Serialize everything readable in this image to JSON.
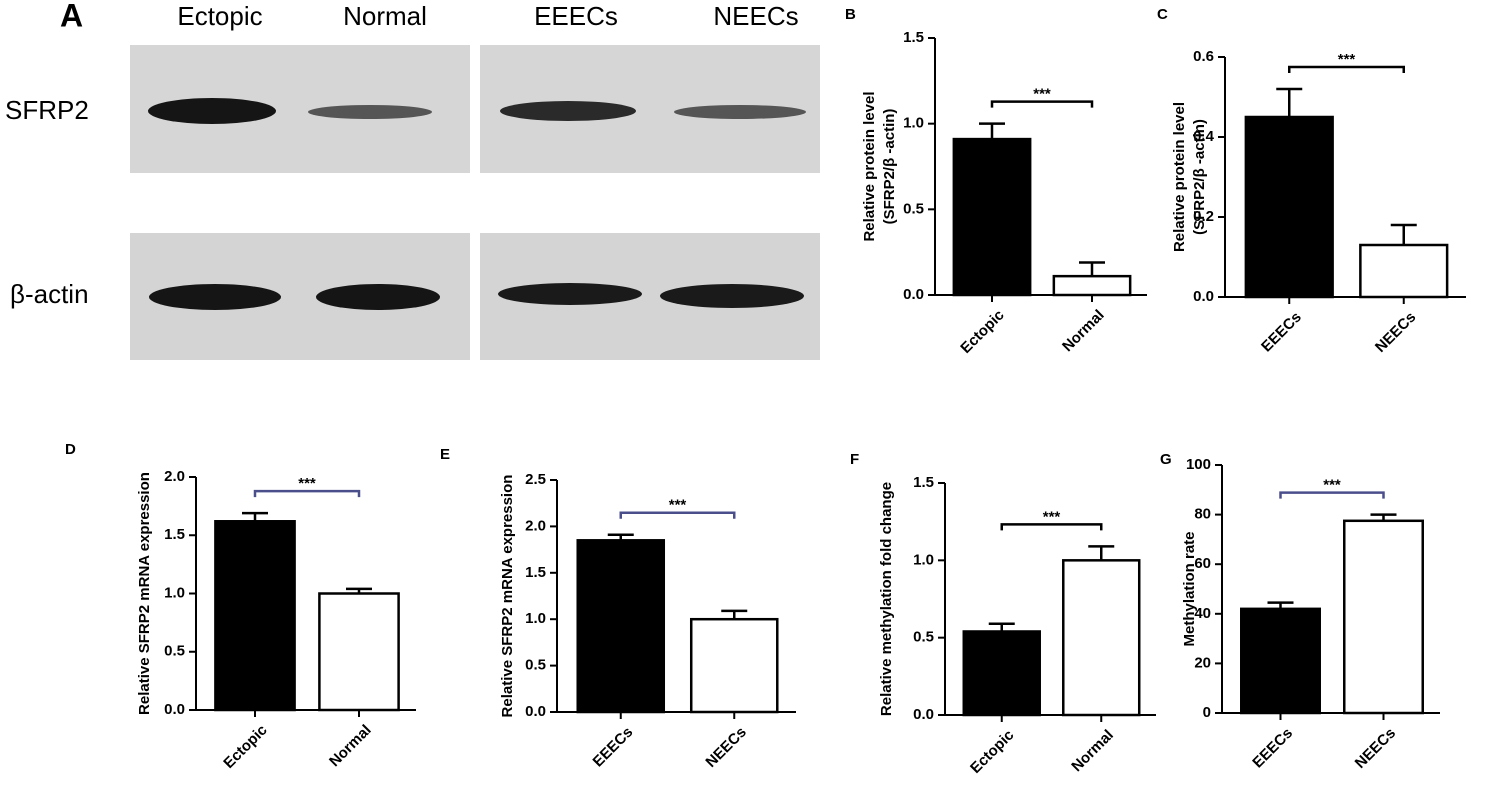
{
  "blot": {
    "panel": "A",
    "lanes": [
      "Ectopic",
      "Normal",
      "EEECs",
      "NEECs"
    ],
    "rows": [
      "SFRP2",
      "β-actin"
    ]
  },
  "chart_data": [
    {
      "type": "bar",
      "panel": "B",
      "ylabel": [
        "Relative protein level",
        "(SFRP2/β -actin)"
      ],
      "categories": [
        "Ectopic",
        "Normal"
      ],
      "values": [
        0.91,
        0.11
      ],
      "errors": [
        0.09,
        0.08
      ],
      "colors": [
        "#000000",
        "#ffffff"
      ],
      "ylim": [
        0,
        1.5
      ],
      "yticks": [
        {
          "value": 0,
          "label": "0.0"
        },
        0.5,
        {
          "value": 1,
          "label": "1.0"
        },
        1.5
      ],
      "annotation": "***",
      "bracket_color": "#000000"
    },
    {
      "type": "bar",
      "panel": "C",
      "ylabel": [
        "Relative protein level",
        "(SFRP2/β -actin)"
      ],
      "categories": [
        "EEECs",
        "NEECs"
      ],
      "values": [
        0.45,
        0.13
      ],
      "errors": [
        0.07,
        0.05
      ],
      "colors": [
        "#000000",
        "#ffffff"
      ],
      "ylim": [
        0,
        0.6
      ],
      "yticks": [
        {
          "value": 0,
          "label": "0.0"
        },
        0.2,
        0.4,
        0.6
      ],
      "annotation": "***",
      "bracket_color": "#000000"
    },
    {
      "type": "bar",
      "panel": "D",
      "ylabel": [
        "Relative SFRP2 mRNA expression"
      ],
      "categories": [
        "Ectopic",
        "Normal"
      ],
      "values": [
        1.62,
        1.0
      ],
      "errors": [
        0.07,
        0.04
      ],
      "colors": [
        "#000000",
        "#ffffff"
      ],
      "ylim": [
        0,
        2
      ],
      "yticks": [
        {
          "value": 0,
          "label": "0.0"
        },
        0.5,
        {
          "value": 1,
          "label": "1.0"
        },
        1.5,
        {
          "value": 2,
          "label": "2.0"
        }
      ],
      "annotation": "***",
      "bracket_color": "#4a4f8c"
    },
    {
      "type": "bar",
      "panel": "E",
      "ylabel": [
        "Relative SFRP2 mRNA expression"
      ],
      "categories": [
        "EEECs",
        "NEECs"
      ],
      "values": [
        1.85,
        1.0
      ],
      "errors": [
        0.06,
        0.09
      ],
      "colors": [
        "#000000",
        "#ffffff"
      ],
      "ylim": [
        0,
        2.5
      ],
      "yticks": [
        {
          "value": 0,
          "label": "0.0"
        },
        0.5,
        {
          "value": 1,
          "label": "1.0"
        },
        1.5,
        {
          "value": 2,
          "label": "2.0"
        },
        2.5
      ],
      "annotation": "***",
      "bracket_color": "#4a4f8c"
    },
    {
      "type": "bar",
      "panel": "F",
      "ylabel": [
        "Relative methylation fold change"
      ],
      "categories": [
        "Ectopic",
        "Normal"
      ],
      "values": [
        0.54,
        1.0
      ],
      "errors": [
        0.05,
        0.09
      ],
      "colors": [
        "#000000",
        "#ffffff"
      ],
      "ylim": [
        0,
        1.5
      ],
      "yticks": [
        {
          "value": 0,
          "label": "0.0"
        },
        0.5,
        {
          "value": 1,
          "label": "1.0"
        },
        1.5
      ],
      "annotation": "***",
      "bracket_color": "#000000"
    },
    {
      "type": "bar",
      "panel": "G",
      "ylabel": [
        "Methylation rate"
      ],
      "categories": [
        "EEECs",
        "NEECs"
      ],
      "values": [
        42,
        77.5
      ],
      "errors": [
        2.5,
        2.5
      ],
      "colors": [
        "#000000",
        "#ffffff"
      ],
      "ylim": [
        0,
        100
      ],
      "yticks": [
        0,
        20,
        40,
        60,
        80,
        100
      ],
      "annotation": "***",
      "bracket_color": "#4a4f8c"
    }
  ]
}
